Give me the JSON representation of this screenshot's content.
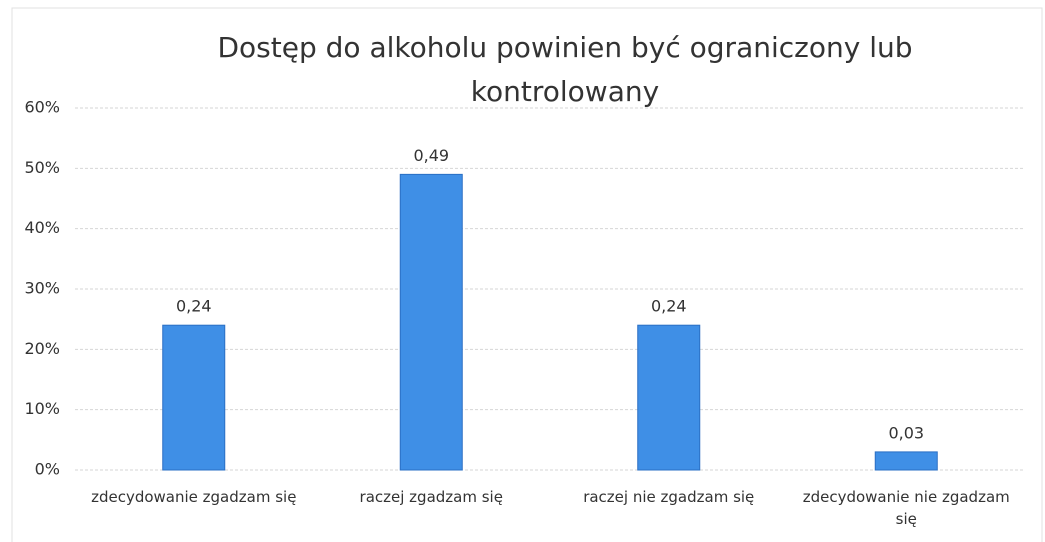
{
  "chart_data": {
    "type": "bar",
    "title": "Dostęp do alkoholu powinien być ograniczony lub kontrolowany",
    "categories": [
      "zdecydowanie zgadzam się",
      "raczej zgadzam się",
      "raczej nie zgadzam się",
      "zdecydowanie nie zgadzam się"
    ],
    "values": [
      24,
      49,
      24,
      3
    ],
    "value_labels": [
      "0,24",
      "0,49",
      "0,24",
      "0,03"
    ],
    "color": "#3f8fe6",
    "ylim": [
      0,
      60
    ],
    "yticks": [
      {
        "value": 0,
        "label": "0%"
      },
      {
        "value": 10,
        "label": "10%"
      },
      {
        "value": 20,
        "label": "20%"
      },
      {
        "value": 30,
        "label": "30%"
      },
      {
        "value": 40,
        "label": "40%"
      },
      {
        "value": 50,
        "label": "50%"
      },
      {
        "value": 60,
        "label": "60%"
      }
    ],
    "grid": true
  }
}
